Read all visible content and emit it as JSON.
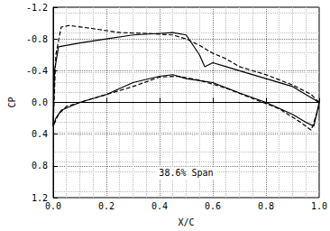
{
  "chart_data": {
    "type": "line",
    "x_label": "X/C",
    "y_label": "CP",
    "annotations": [
      {
        "text": "38.6% Span",
        "x": 0.5,
        "y": 0.97
      }
    ],
    "xlim": [
      0,
      1
    ],
    "xticks": [
      {
        "value": 0,
        "label": "0.0"
      },
      0.2,
      0.4,
      0.6,
      0.8,
      {
        "value": 1,
        "label": "1.0"
      }
    ],
    "ylim": [
      -1.2,
      1.2
    ],
    "yticks": [
      -1.2,
      -0.8,
      -0.4,
      {
        "value": 0,
        "label": "0.0"
      },
      0.4,
      0.8,
      1.2
    ],
    "y_inverted": true,
    "grid": true,
    "series": [
      {
        "color": "#000000",
        "line_style": "solid",
        "x": [
          1.0,
          0.95,
          0.9,
          0.8,
          0.7,
          0.65,
          0.6,
          0.57,
          0.55,
          0.5,
          0.45,
          0.4,
          0.3,
          0.2,
          0.1,
          0.02,
          0.005,
          0.0,
          0.01,
          0.03,
          0.1,
          0.2,
          0.3,
          0.4,
          0.45,
          0.5,
          0.6,
          0.7,
          0.8,
          0.9,
          0.95,
          0.98,
          1.0
        ],
        "values": [
          0.0,
          -0.1,
          -0.2,
          -0.3,
          -0.4,
          -0.45,
          -0.5,
          -0.45,
          -0.6,
          -0.85,
          -0.88,
          -0.87,
          -0.85,
          -0.8,
          -0.75,
          -0.7,
          -0.4,
          0.3,
          0.2,
          0.1,
          0.0,
          -0.1,
          -0.25,
          -0.33,
          -0.35,
          -0.3,
          -0.25,
          -0.12,
          0.0,
          0.15,
          0.25,
          0.3,
          0.0
        ]
      },
      {
        "color": "#000000",
        "line_style": "dashed",
        "x": [
          1.0,
          0.97,
          0.9,
          0.8,
          0.7,
          0.65,
          0.6,
          0.55,
          0.5,
          0.45,
          0.35,
          0.25,
          0.15,
          0.06,
          0.03,
          0.01,
          0.0,
          0.02,
          0.05,
          0.15,
          0.3,
          0.4,
          0.47,
          0.55,
          0.65,
          0.75,
          0.85,
          0.93,
          0.97,
          1.0
        ],
        "values": [
          0.0,
          -0.1,
          -0.22,
          -0.35,
          -0.45,
          -0.55,
          -0.62,
          -0.72,
          -0.8,
          -0.85,
          -0.87,
          -0.88,
          -0.93,
          -0.97,
          -0.95,
          -0.6,
          0.3,
          0.15,
          0.05,
          -0.05,
          -0.2,
          -0.32,
          -0.33,
          -0.28,
          -0.18,
          -0.05,
          0.08,
          0.25,
          0.35,
          0.05
        ]
      }
    ]
  }
}
